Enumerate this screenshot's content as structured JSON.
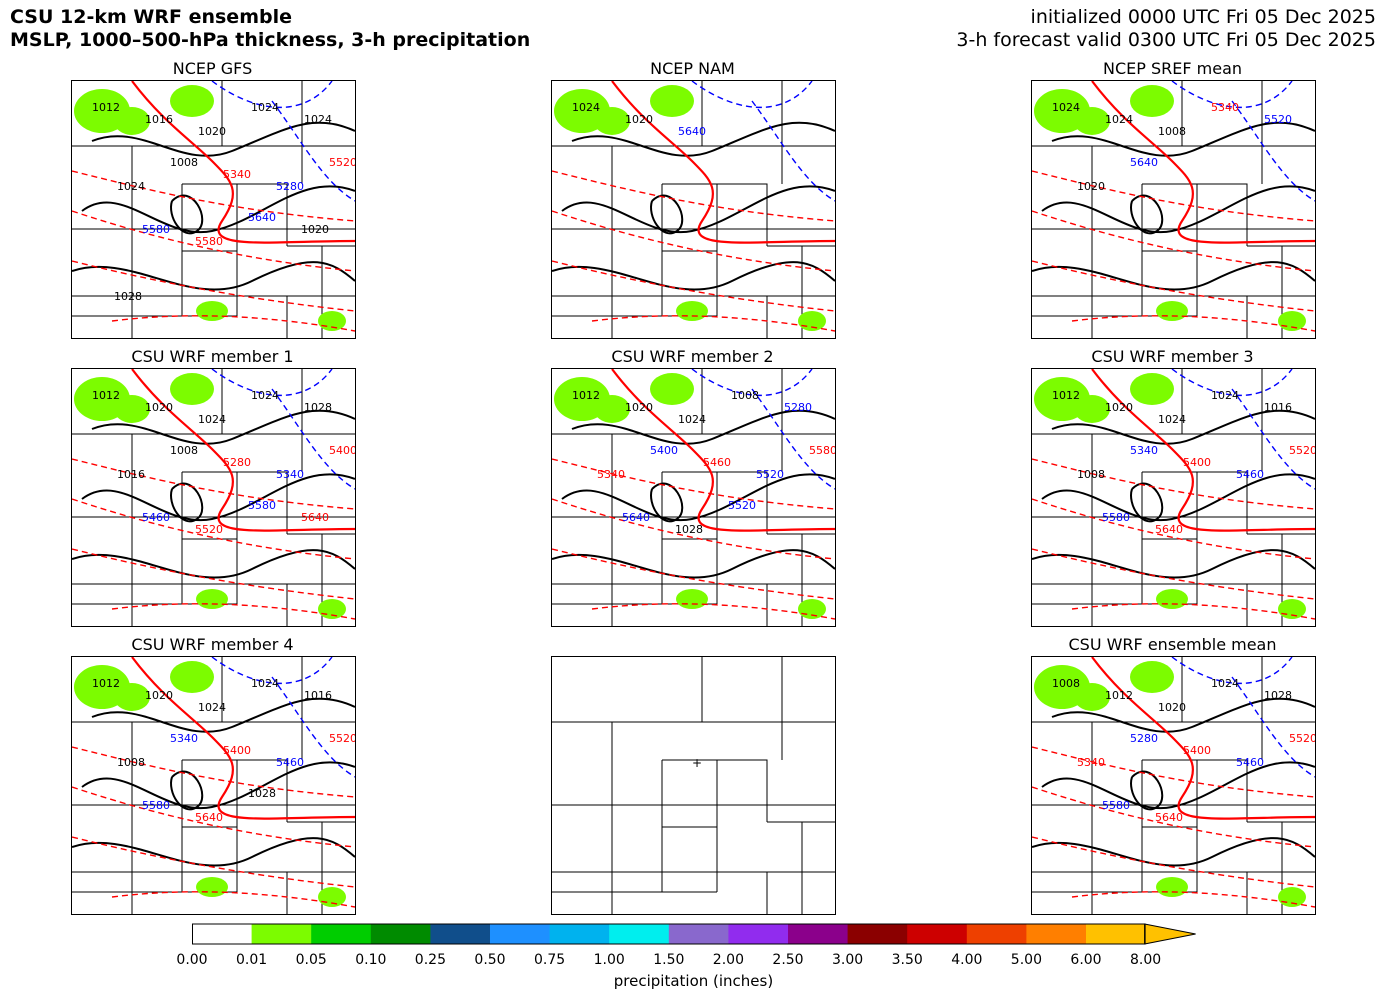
{
  "header": {
    "title_line1": "CSU 12-km WRF ensemble",
    "title_line2": "MSLP, 1000–500-hPa thickness, 3-h precipitation",
    "init_line": "initialized 0000 UTC Fri 05 Dec 2025",
    "valid_line": "3-h forecast valid 0300 UTC Fri 05 Dec 2025"
  },
  "panels": [
    {
      "title": "NCEP GFS",
      "labels": [
        "1012",
        "1016",
        "1020",
        "1024",
        "1024",
        "1024",
        "1008",
        "5340",
        "5280",
        "5520",
        "5580",
        "5580",
        "5640",
        "1020",
        "1028"
      ]
    },
    {
      "title": "NCEP NAM",
      "labels": [
        "1024",
        "1020",
        "5640"
      ]
    },
    {
      "title": "NCEP SREF mean",
      "labels": [
        "1024",
        "1024",
        "1008",
        "5340",
        "5520",
        "1020",
        "5640"
      ]
    },
    {
      "title": "CSU WRF member 1",
      "labels": [
        "1012",
        "1020",
        "1024",
        "1024",
        "1028",
        "1016",
        "1008",
        "5280",
        "5340",
        "5400",
        "5460",
        "5520",
        "5580",
        "5640"
      ]
    },
    {
      "title": "CSU WRF member 2",
      "labels": [
        "1012",
        "1020",
        "1024",
        "1008",
        "5280",
        "5340",
        "5400",
        "5460",
        "5520",
        "5580",
        "5640",
        "1028",
        "5520"
      ]
    },
    {
      "title": "CSU WRF member 3",
      "labels": [
        "1012",
        "1020",
        "1024",
        "1024",
        "1016",
        "1008",
        "5340",
        "5400",
        "5460",
        "5520",
        "5580",
        "5640"
      ]
    },
    {
      "title": "CSU WRF member 4",
      "labels": [
        "1012",
        "1020",
        "1024",
        "1024",
        "1016",
        "1008",
        "5340",
        "5400",
        "5460",
        "5520",
        "5580",
        "5640",
        "1028"
      ]
    },
    {
      "title": "",
      "labels": []
    },
    {
      "title": "CSU WRF ensemble mean",
      "labels": [
        "1008",
        "1012",
        "1020",
        "1024",
        "1028",
        "5340",
        "5280",
        "5400",
        "5460",
        "5520",
        "5580",
        "5640"
      ]
    }
  ],
  "colorbar": {
    "label": "precipitation (inches)",
    "ticks": [
      "0.00",
      "0.01",
      "0.05",
      "0.10",
      "0.25",
      "0.50",
      "0.75",
      "1.00",
      "1.50",
      "2.00",
      "2.50",
      "3.00",
      "3.50",
      "4.00",
      "5.00",
      "6.00",
      "8.00"
    ],
    "colors": [
      "#ffffff",
      "#7cfc00",
      "#00cd00",
      "#008b00",
      "#104e8b",
      "#1e90ff",
      "#00b2ee",
      "#00eeee",
      "#8968cd",
      "#912cee",
      "#8b008b",
      "#8b0000",
      "#cd0000",
      "#ee4000",
      "#ff7f00",
      "#ffc100"
    ]
  },
  "colors": {
    "isobar": "#000000",
    "thickness_cold": "#0000ff",
    "thickness_warm": "#ff0000",
    "precip": "#7cfc00"
  }
}
